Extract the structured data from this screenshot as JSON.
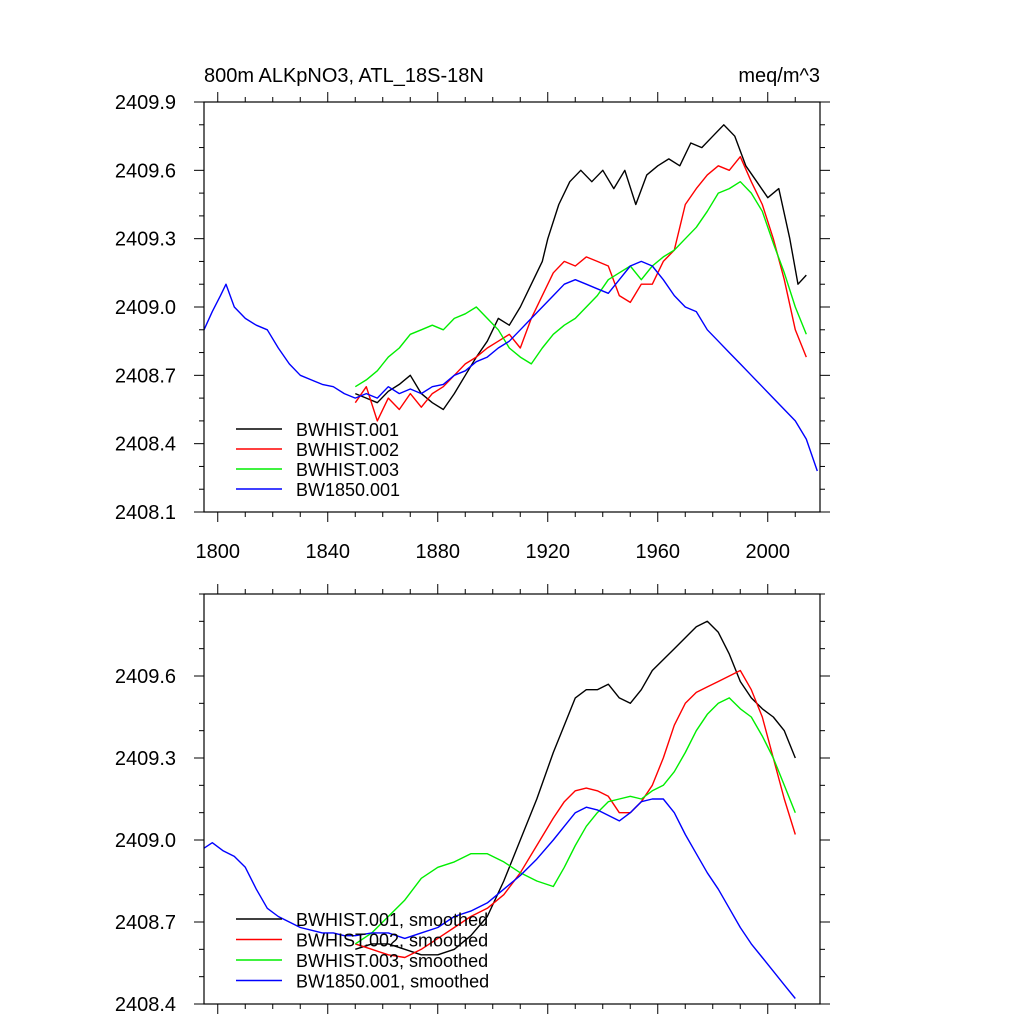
{
  "chart_data": [
    {
      "type": "line",
      "title": "800m ALKpNO3, ATL_18S-18N",
      "units": "meq/m^3",
      "xlabel": "",
      "ylabel": "",
      "xlim": [
        1795,
        2019
      ],
      "ylim": [
        2408.1,
        2409.9
      ],
      "xticks": [
        1800,
        1840,
        1880,
        1920,
        1960,
        2000
      ],
      "xtick_labels": [
        "1800",
        "1840",
        "1880",
        "1920",
        "1960",
        "2000"
      ],
      "yticks": [
        2408.1,
        2408.4,
        2408.7,
        2409.0,
        2409.3,
        2409.6,
        2409.9
      ],
      "ytick_labels": [
        "2408.1",
        "2408.4",
        "2408.7",
        "2409.0",
        "2409.3",
        "2409.6",
        "2409.9"
      ],
      "legend_position": "bottom-left",
      "series": [
        {
          "name": "BWHIST.001",
          "color": "#000000",
          "x": [
            1850,
            1854,
            1858,
            1862,
            1866,
            1870,
            1874,
            1878,
            1882,
            1886,
            1890,
            1894,
            1898,
            1902,
            1906,
            1910,
            1914,
            1918,
            1920,
            1924,
            1928,
            1932,
            1936,
            1940,
            1944,
            1948,
            1952,
            1956,
            1960,
            1964,
            1968,
            1972,
            1976,
            1980,
            1984,
            1988,
            1992,
            1996,
            2000,
            2004,
            2008,
            2011,
            2014
          ],
          "y": [
            2408.62,
            2408.6,
            2408.58,
            2408.63,
            2408.66,
            2408.7,
            2408.62,
            2408.58,
            2408.55,
            2408.62,
            2408.7,
            2408.78,
            2408.85,
            2408.95,
            2408.92,
            2409.0,
            2409.1,
            2409.2,
            2409.3,
            2409.45,
            2409.55,
            2409.6,
            2409.55,
            2409.6,
            2409.52,
            2409.6,
            2409.45,
            2409.58,
            2409.62,
            2409.65,
            2409.62,
            2409.72,
            2409.7,
            2409.75,
            2409.8,
            2409.75,
            2409.62,
            2409.55,
            2409.48,
            2409.52,
            2409.3,
            2409.1,
            2409.14
          ]
        },
        {
          "name": "BWHIST.002",
          "color": "#ff0000",
          "x": [
            1850,
            1854,
            1858,
            1862,
            1866,
            1870,
            1874,
            1878,
            1882,
            1886,
            1890,
            1894,
            1898,
            1902,
            1906,
            1910,
            1914,
            1918,
            1922,
            1926,
            1930,
            1934,
            1938,
            1942,
            1946,
            1950,
            1954,
            1958,
            1962,
            1966,
            1970,
            1974,
            1978,
            1982,
            1986,
            1990,
            1994,
            1998,
            2002,
            2006,
            2010,
            2014
          ],
          "y": [
            2408.58,
            2408.65,
            2408.5,
            2408.6,
            2408.55,
            2408.62,
            2408.56,
            2408.62,
            2408.65,
            2408.7,
            2408.75,
            2408.78,
            2408.82,
            2408.85,
            2408.88,
            2408.82,
            2408.95,
            2409.05,
            2409.15,
            2409.2,
            2409.18,
            2409.22,
            2409.2,
            2409.18,
            2409.05,
            2409.02,
            2409.1,
            2409.1,
            2409.2,
            2409.25,
            2409.45,
            2409.52,
            2409.58,
            2409.62,
            2409.6,
            2409.66,
            2409.55,
            2409.45,
            2409.3,
            2409.12,
            2408.9,
            2408.78
          ]
        },
        {
          "name": "BWHIST.003",
          "color": "#00ee00",
          "x": [
            1850,
            1854,
            1858,
            1862,
            1866,
            1870,
            1874,
            1878,
            1882,
            1886,
            1890,
            1894,
            1898,
            1902,
            1906,
            1910,
            1914,
            1918,
            1922,
            1926,
            1930,
            1934,
            1938,
            1942,
            1946,
            1950,
            1954,
            1958,
            1962,
            1966,
            1970,
            1974,
            1978,
            1982,
            1986,
            1990,
            1994,
            1998,
            2002,
            2006,
            2010,
            2014
          ],
          "y": [
            2408.65,
            2408.68,
            2408.72,
            2408.78,
            2408.82,
            2408.88,
            2408.9,
            2408.92,
            2408.9,
            2408.95,
            2408.97,
            2409.0,
            2408.95,
            2408.9,
            2408.82,
            2408.78,
            2408.75,
            2408.82,
            2408.88,
            2408.92,
            2408.95,
            2409.0,
            2409.05,
            2409.12,
            2409.15,
            2409.18,
            2409.12,
            2409.18,
            2409.22,
            2409.25,
            2409.3,
            2409.35,
            2409.42,
            2409.5,
            2409.52,
            2409.55,
            2409.5,
            2409.42,
            2409.28,
            2409.15,
            2409.0,
            2408.88
          ]
        },
        {
          "name": "BW1850.001",
          "color": "#0000ff",
          "x": [
            1795,
            1798,
            1801,
            1803,
            1806,
            1810,
            1814,
            1818,
            1822,
            1826,
            1830,
            1834,
            1838,
            1842,
            1846,
            1850,
            1854,
            1858,
            1862,
            1866,
            1870,
            1874,
            1878,
            1882,
            1886,
            1890,
            1894,
            1898,
            1902,
            1906,
            1910,
            1914,
            1918,
            1922,
            1926,
            1930,
            1934,
            1938,
            1942,
            1946,
            1950,
            1954,
            1958,
            1962,
            1966,
            1970,
            1974,
            1978,
            1982,
            1986,
            1990,
            1994,
            1998,
            2002,
            2006,
            2010,
            2014,
            2018
          ],
          "y": [
            2408.9,
            2408.98,
            2409.05,
            2409.1,
            2409.0,
            2408.95,
            2408.92,
            2408.9,
            2408.82,
            2408.75,
            2408.7,
            2408.68,
            2408.66,
            2408.65,
            2408.62,
            2408.6,
            2408.62,
            2408.6,
            2408.65,
            2408.62,
            2408.64,
            2408.62,
            2408.65,
            2408.66,
            2408.7,
            2408.72,
            2408.76,
            2408.78,
            2408.82,
            2408.85,
            2408.9,
            2408.95,
            2409.0,
            2409.05,
            2409.1,
            2409.12,
            2409.1,
            2409.08,
            2409.06,
            2409.12,
            2409.18,
            2409.2,
            2409.18,
            2409.12,
            2409.05,
            2409.0,
            2408.98,
            2408.9,
            2408.85,
            2408.8,
            2408.75,
            2408.7,
            2408.65,
            2408.6,
            2408.55,
            2408.5,
            2408.42,
            2408.28
          ]
        }
      ]
    },
    {
      "type": "line",
      "title": "",
      "xlabel": "",
      "ylabel": "",
      "xlim": [
        1795,
        2019
      ],
      "ylim": [
        2408.4,
        2409.9
      ],
      "xticks": [
        1800,
        1840,
        1880,
        1920,
        1960,
        2000
      ],
      "xtick_labels": [],
      "yticks": [
        2408.4,
        2408.7,
        2409.0,
        2409.3,
        2409.6
      ],
      "ytick_labels": [
        "2408.4",
        "2408.7",
        "2409.0",
        "2409.3",
        "2409.6"
      ],
      "legend_position": "bottom-left",
      "series": [
        {
          "name": "BWHIST.001, smoothed",
          "color": "#000000",
          "x": [
            1850,
            1856,
            1862,
            1868,
            1874,
            1880,
            1886,
            1892,
            1898,
            1904,
            1910,
            1916,
            1922,
            1926,
            1930,
            1934,
            1938,
            1942,
            1946,
            1950,
            1954,
            1958,
            1962,
            1966,
            1970,
            1974,
            1978,
            1982,
            1986,
            1990,
            1994,
            1998,
            2002,
            2006,
            2010
          ],
          "y": [
            2408.6,
            2408.62,
            2408.62,
            2408.6,
            2408.58,
            2408.58,
            2408.6,
            2408.65,
            2408.72,
            2408.85,
            2409.0,
            2409.15,
            2409.32,
            2409.42,
            2409.52,
            2409.55,
            2409.55,
            2409.57,
            2409.52,
            2409.5,
            2409.55,
            2409.62,
            2409.66,
            2409.7,
            2409.74,
            2409.78,
            2409.8,
            2409.76,
            2409.68,
            2409.58,
            2409.52,
            2409.48,
            2409.45,
            2409.4,
            2409.3
          ]
        },
        {
          "name": "BWHIST.002, smoothed",
          "color": "#ff0000",
          "x": [
            1850,
            1856,
            1862,
            1868,
            1874,
            1880,
            1886,
            1892,
            1898,
            1904,
            1910,
            1916,
            1922,
            1926,
            1930,
            1934,
            1938,
            1942,
            1946,
            1950,
            1954,
            1958,
            1962,
            1966,
            1970,
            1974,
            1978,
            1982,
            1986,
            1990,
            1994,
            1998,
            2002,
            2006,
            2010
          ],
          "y": [
            2408.62,
            2408.6,
            2408.58,
            2408.57,
            2408.6,
            2408.64,
            2408.68,
            2408.72,
            2408.75,
            2408.8,
            2408.88,
            2408.98,
            2409.08,
            2409.14,
            2409.18,
            2409.19,
            2409.18,
            2409.16,
            2409.1,
            2409.1,
            2409.14,
            2409.2,
            2409.3,
            2409.42,
            2409.5,
            2409.54,
            2409.56,
            2409.58,
            2409.6,
            2409.62,
            2409.55,
            2409.45,
            2409.3,
            2409.15,
            2409.02
          ]
        },
        {
          "name": "BWHIST.003, smoothed",
          "color": "#00ee00",
          "x": [
            1850,
            1856,
            1862,
            1868,
            1874,
            1880,
            1886,
            1892,
            1898,
            1904,
            1910,
            1916,
            1922,
            1926,
            1930,
            1934,
            1938,
            1942,
            1946,
            1950,
            1954,
            1958,
            1962,
            1966,
            1970,
            1974,
            1978,
            1982,
            1986,
            1990,
            1994,
            1998,
            2002,
            2006,
            2010
          ],
          "y": [
            2408.62,
            2408.66,
            2408.72,
            2408.78,
            2408.86,
            2408.9,
            2408.92,
            2408.95,
            2408.95,
            2408.92,
            2408.88,
            2408.85,
            2408.83,
            2408.9,
            2408.98,
            2409.05,
            2409.1,
            2409.14,
            2409.15,
            2409.16,
            2409.15,
            2409.18,
            2409.2,
            2409.25,
            2409.32,
            2409.4,
            2409.46,
            2409.5,
            2409.52,
            2409.48,
            2409.45,
            2409.38,
            2409.3,
            2409.2,
            2409.1
          ]
        },
        {
          "name": "BW1850.001, smoothed",
          "color": "#0000ff",
          "x": [
            1795,
            1798,
            1802,
            1806,
            1810,
            1814,
            1818,
            1822,
            1826,
            1830,
            1834,
            1838,
            1842,
            1846,
            1850,
            1856,
            1862,
            1868,
            1874,
            1880,
            1886,
            1892,
            1898,
            1904,
            1910,
            1916,
            1922,
            1926,
            1930,
            1934,
            1938,
            1942,
            1946,
            1950,
            1954,
            1958,
            1962,
            1966,
            1970,
            1974,
            1978,
            1982,
            1986,
            1990,
            1994,
            1998,
            2002,
            2006,
            2010
          ],
          "y": [
            2408.97,
            2408.99,
            2408.96,
            2408.94,
            2408.9,
            2408.82,
            2408.75,
            2408.72,
            2408.7,
            2408.68,
            2408.67,
            2408.66,
            2408.66,
            2408.65,
            2408.65,
            2408.66,
            2408.66,
            2408.64,
            2408.66,
            2408.68,
            2408.72,
            2408.74,
            2408.77,
            2408.82,
            2408.87,
            2408.93,
            2409.0,
            2409.05,
            2409.1,
            2409.12,
            2409.11,
            2409.09,
            2409.07,
            2409.1,
            2409.14,
            2409.15,
            2409.15,
            2409.1,
            2409.02,
            2408.95,
            2408.88,
            2408.82,
            2408.75,
            2408.68,
            2408.62,
            2408.57,
            2408.52,
            2408.47,
            2408.42
          ]
        }
      ]
    }
  ]
}
